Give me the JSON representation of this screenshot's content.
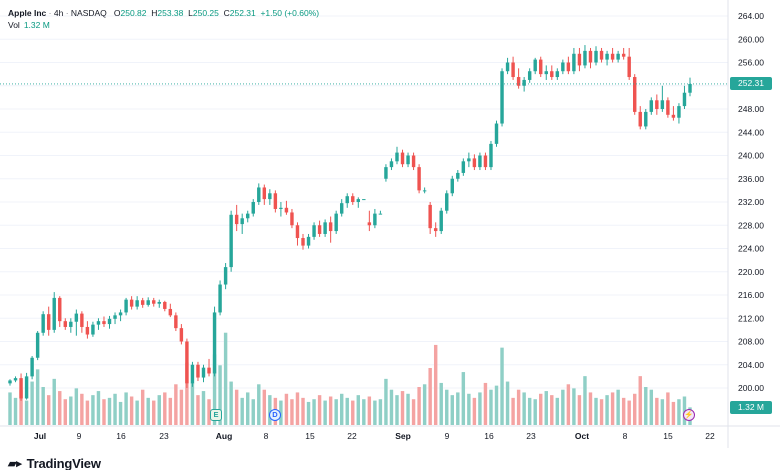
{
  "legend": {
    "symbol": "Apple Inc",
    "interval": "4h",
    "exchange": "NASDAQ",
    "open_label": "O",
    "open": "250.82",
    "high_label": "H",
    "high": "253.38",
    "low_label": "L",
    "low": "250.25",
    "close_label": "C",
    "close": "252.31",
    "change": "+1.50 (+0.60%)",
    "volume_label": "Vol",
    "volume": "1.32 M"
  },
  "price_tag": "252.31",
  "volume_tag": "1.32 M",
  "events": [
    {
      "label": "E",
      "name": "earnings-icon"
    },
    {
      "label": "D",
      "name": "dividend-icon"
    },
    {
      "label": "⚡",
      "name": "split-icon"
    }
  ],
  "brand": {
    "mark": "▰▸",
    "name": "TradingView"
  },
  "colors": {
    "up": "#26a69a",
    "down": "#ef5350",
    "vol_up": "#8fcfc6",
    "vol_down": "#f4a3a2",
    "text": "#131722",
    "axis_text": "#131722"
  },
  "chart_data": {
    "type": "candlestick",
    "title": "Apple Inc · 4h · NASDAQ",
    "y_axis": {
      "ticks": [
        "200.00",
        "204.00",
        "208.00",
        "212.00",
        "216.00",
        "220.00",
        "224.00",
        "228.00",
        "232.00",
        "236.00",
        "240.00",
        "244.00",
        "248.00",
        "252.00",
        "256.00",
        "260.00",
        "264.00"
      ],
      "ylim": [
        197,
        266
      ]
    },
    "x_axis": {
      "ticks": [
        "Jul",
        "9",
        "16",
        "23",
        "Aug",
        "8",
        "15",
        "22",
        "Sep",
        "9",
        "16",
        "23",
        "Oct",
        "8",
        "15",
        "22"
      ]
    },
    "last_price": 252.31,
    "series": [
      {
        "name": "price",
        "candles": [
          [
            200.8,
            201.5,
            200.4,
            201.3
          ],
          [
            201.3,
            202.0,
            201.0,
            201.7
          ],
          [
            201.7,
            202.5,
            197.8,
            198.2
          ],
          [
            198.2,
            202.6,
            198.0,
            202.0
          ],
          [
            202.0,
            205.5,
            201.5,
            205.2
          ],
          [
            205.2,
            209.8,
            204.8,
            209.5
          ],
          [
            209.5,
            213.2,
            209.0,
            212.7
          ],
          [
            212.7,
            214.0,
            209.0,
            210.0
          ],
          [
            210.0,
            216.5,
            209.5,
            215.5
          ],
          [
            215.5,
            215.8,
            210.5,
            211.5
          ],
          [
            211.5,
            212.0,
            210.0,
            210.5
          ],
          [
            210.5,
            212.0,
            209.5,
            211.4
          ],
          [
            211.4,
            213.5,
            209.0,
            212.8
          ],
          [
            212.8,
            213.2,
            209.5,
            210.5
          ],
          [
            210.5,
            211.5,
            208.5,
            209.2
          ],
          [
            209.2,
            211.4,
            208.8,
            210.9
          ],
          [
            210.9,
            212.0,
            210.0,
            211.5
          ],
          [
            211.5,
            212.3,
            210.5,
            211.0
          ],
          [
            211.0,
            212.4,
            210.2,
            211.9
          ],
          [
            211.9,
            213.0,
            211.0,
            212.5
          ],
          [
            212.5,
            213.5,
            211.5,
            213.0
          ],
          [
            213.0,
            215.5,
            212.5,
            215.2
          ],
          [
            215.2,
            215.8,
            213.5,
            214.0
          ],
          [
            214.0,
            215.8,
            213.5,
            215.1
          ],
          [
            215.1,
            215.5,
            213.8,
            214.3
          ],
          [
            214.3,
            215.6,
            214.0,
            215.1
          ],
          [
            215.1,
            215.5,
            214.0,
            214.5
          ],
          [
            214.5,
            215.2,
            213.8,
            214.8
          ],
          [
            214.8,
            215.0,
            213.2,
            213.6
          ],
          [
            213.6,
            214.5,
            212.2,
            212.5
          ],
          [
            212.5,
            213.0,
            209.8,
            210.3
          ],
          [
            210.3,
            211.0,
            207.5,
            208.0
          ],
          [
            208.0,
            208.5,
            200.0,
            200.8
          ],
          [
            200.8,
            204.5,
            200.2,
            204.0
          ],
          [
            204.0,
            204.5,
            201.2,
            201.8
          ],
          [
            201.8,
            204.0,
            201.0,
            203.5
          ],
          [
            203.5,
            205.0,
            202.0,
            202.5
          ],
          [
            202.5,
            214.0,
            202.0,
            213.0
          ],
          [
            213.0,
            218.5,
            212.5,
            217.8
          ],
          [
            217.8,
            221.5,
            217.0,
            220.8
          ],
          [
            220.8,
            230.5,
            220.0,
            229.8
          ],
          [
            229.8,
            231.5,
            227.0,
            228.2
          ],
          [
            228.2,
            230.0,
            226.5,
            229.2
          ],
          [
            229.2,
            230.5,
            228.5,
            230.0
          ],
          [
            230.0,
            232.5,
            229.5,
            232.0
          ],
          [
            232.0,
            235.2,
            231.5,
            234.5
          ],
          [
            234.5,
            235.0,
            231.5,
            232.5
          ],
          [
            232.5,
            234.2,
            231.5,
            233.5
          ],
          [
            233.5,
            234.0,
            230.2,
            230.8
          ],
          [
            230.8,
            232.0,
            229.5,
            231.0
          ],
          [
            231.0,
            232.2,
            229.8,
            230.2
          ],
          [
            230.2,
            230.8,
            227.5,
            228.0
          ],
          [
            228.0,
            228.5,
            224.5,
            225.8
          ],
          [
            225.8,
            226.5,
            223.8,
            224.5
          ],
          [
            224.5,
            226.5,
            224.0,
            226.0
          ],
          [
            226.0,
            228.5,
            225.5,
            228.0
          ],
          [
            228.0,
            228.8,
            226.0,
            226.5
          ],
          [
            226.5,
            229.0,
            226.0,
            228.5
          ],
          [
            228.5,
            229.5,
            225.0,
            227.0
          ],
          [
            227.0,
            230.5,
            226.5,
            230.0
          ],
          [
            230.0,
            232.5,
            229.5,
            231.8
          ],
          [
            231.8,
            233.5,
            231.0,
            233.0
          ],
          [
            233.0,
            233.5,
            231.5,
            232.0
          ],
          [
            232.0,
            232.8,
            231.0,
            232.5
          ],
          [
            232.5,
            232.5,
            232.5,
            232.5
          ],
          [
            228.5,
            230.5,
            227.0,
            228.0
          ],
          [
            228.0,
            230.8,
            227.5,
            230.0
          ],
          [
            230.0,
            230.5,
            230.0,
            230.0
          ],
          [
            236.0,
            238.5,
            235.5,
            238.0
          ],
          [
            238.0,
            239.5,
            237.5,
            239.0
          ],
          [
            239.0,
            241.5,
            238.5,
            240.5
          ],
          [
            240.5,
            241.0,
            238.0,
            238.5
          ],
          [
            238.5,
            240.5,
            238.0,
            240.0
          ],
          [
            240.0,
            240.5,
            237.5,
            238.0
          ],
          [
            238.0,
            238.5,
            233.5,
            234.0
          ],
          [
            234.0,
            234.5,
            233.5,
            234.0
          ],
          [
            231.5,
            232.0,
            226.5,
            227.5
          ],
          [
            227.5,
            228.5,
            226.0,
            227.0
          ],
          [
            227.0,
            231.0,
            226.5,
            230.5
          ],
          [
            230.5,
            234.0,
            230.0,
            233.5
          ],
          [
            233.5,
            236.5,
            233.0,
            236.0
          ],
          [
            236.0,
            237.5,
            235.5,
            237.0
          ],
          [
            237.0,
            239.5,
            236.5,
            239.0
          ],
          [
            239.0,
            240.5,
            238.0,
            239.5
          ],
          [
            239.5,
            240.2,
            237.5,
            238.0
          ],
          [
            238.0,
            240.5,
            237.5,
            240.0
          ],
          [
            240.0,
            240.5,
            237.5,
            238.0
          ],
          [
            238.0,
            242.5,
            237.5,
            242.0
          ],
          [
            242.0,
            246.0,
            241.5,
            245.5
          ],
          [
            245.5,
            255.0,
            245.0,
            254.5
          ],
          [
            254.5,
            256.8,
            254.0,
            256.0
          ],
          [
            256.0,
            257.0,
            253.0,
            253.5
          ],
          [
            253.5,
            255.0,
            251.5,
            252.0
          ],
          [
            252.0,
            253.5,
            251.0,
            253.0
          ],
          [
            253.0,
            255.0,
            252.5,
            254.5
          ],
          [
            254.5,
            256.8,
            254.0,
            256.5
          ],
          [
            256.5,
            257.0,
            253.5,
            254.0
          ],
          [
            254.0,
            255.5,
            253.0,
            254.5
          ],
          [
            254.5,
            255.5,
            253.0,
            253.5
          ],
          [
            253.5,
            255.0,
            253.0,
            254.5
          ],
          [
            254.5,
            256.5,
            254.0,
            256.0
          ],
          [
            256.0,
            257.0,
            254.0,
            254.5
          ],
          [
            254.5,
            258.5,
            254.0,
            257.5
          ],
          [
            257.5,
            258.5,
            254.5,
            255.5
          ],
          [
            255.5,
            259.0,
            255.0,
            258.0
          ],
          [
            258.0,
            258.5,
            255.0,
            256.0
          ],
          [
            256.0,
            258.8,
            255.5,
            258.0
          ],
          [
            258.0,
            258.5,
            256.0,
            256.5
          ],
          [
            256.5,
            258.0,
            255.5,
            257.5
          ],
          [
            257.5,
            258.5,
            256.0,
            256.5
          ],
          [
            256.5,
            258.0,
            256.0,
            257.5
          ],
          [
            257.5,
            258.5,
            256.5,
            257.0
          ],
          [
            257.0,
            258.5,
            253.0,
            253.5
          ],
          [
            253.5,
            254.0,
            247.0,
            247.5
          ],
          [
            247.5,
            248.5,
            244.5,
            245.0
          ],
          [
            245.0,
            248.0,
            244.5,
            247.5
          ],
          [
            247.5,
            250.0,
            247.0,
            249.5
          ],
          [
            249.5,
            250.5,
            247.0,
            248.0
          ],
          [
            248.0,
            252.0,
            247.5,
            249.5
          ],
          [
            249.5,
            250.0,
            246.5,
            247.0
          ],
          [
            247.0,
            248.5,
            246.0,
            246.5
          ],
          [
            246.5,
            249.0,
            245.5,
            248.5
          ],
          [
            248.5,
            252.0,
            248.0,
            250.8
          ],
          [
            250.8,
            253.4,
            250.2,
            252.3
          ]
        ]
      },
      {
        "name": "volume",
        "values": [
          2.4,
          2.0,
          2.6,
          1.8,
          3.2,
          4.1,
          2.8,
          2.2,
          3.4,
          2.5,
          1.9,
          2.1,
          2.7,
          2.3,
          1.8,
          2.2,
          2.5,
          1.9,
          2.0,
          2.3,
          1.7,
          2.4,
          2.1,
          1.8,
          2.6,
          2.0,
          1.8,
          2.2,
          2.4,
          2.0,
          3.0,
          2.6,
          4.6,
          3.1,
          2.2,
          2.5,
          1.9,
          5.2,
          4.4,
          6.8,
          3.2,
          2.6,
          2.0,
          2.4,
          1.9,
          3.0,
          2.6,
          2.2,
          2.0,
          1.8,
          2.3,
          1.9,
          2.4,
          2.0,
          1.7,
          1.9,
          2.2,
          1.8,
          2.1,
          1.9,
          2.3,
          2.0,
          1.8,
          2.2,
          1.9,
          2.1,
          1.8,
          1.9,
          3.4,
          2.6,
          2.2,
          2.5,
          2.3,
          1.9,
          2.8,
          3.0,
          4.2,
          5.9,
          3.1,
          2.6,
          2.2,
          2.4,
          3.9,
          2.3,
          2.0,
          2.4,
          3.1,
          2.6,
          2.9,
          5.7,
          3.2,
          2.0,
          2.6,
          2.4,
          2.0,
          1.9,
          2.3,
          2.5,
          2.2,
          2.0,
          2.6,
          3.0,
          2.7,
          2.2,
          3.6,
          2.4,
          2.0,
          1.9,
          2.2,
          2.4,
          2.6,
          2.0,
          1.8,
          2.3,
          3.6,
          2.8,
          2.6,
          2.0,
          1.9,
          2.4,
          1.7,
          1.9,
          2.1,
          1.3
        ]
      }
    ]
  }
}
